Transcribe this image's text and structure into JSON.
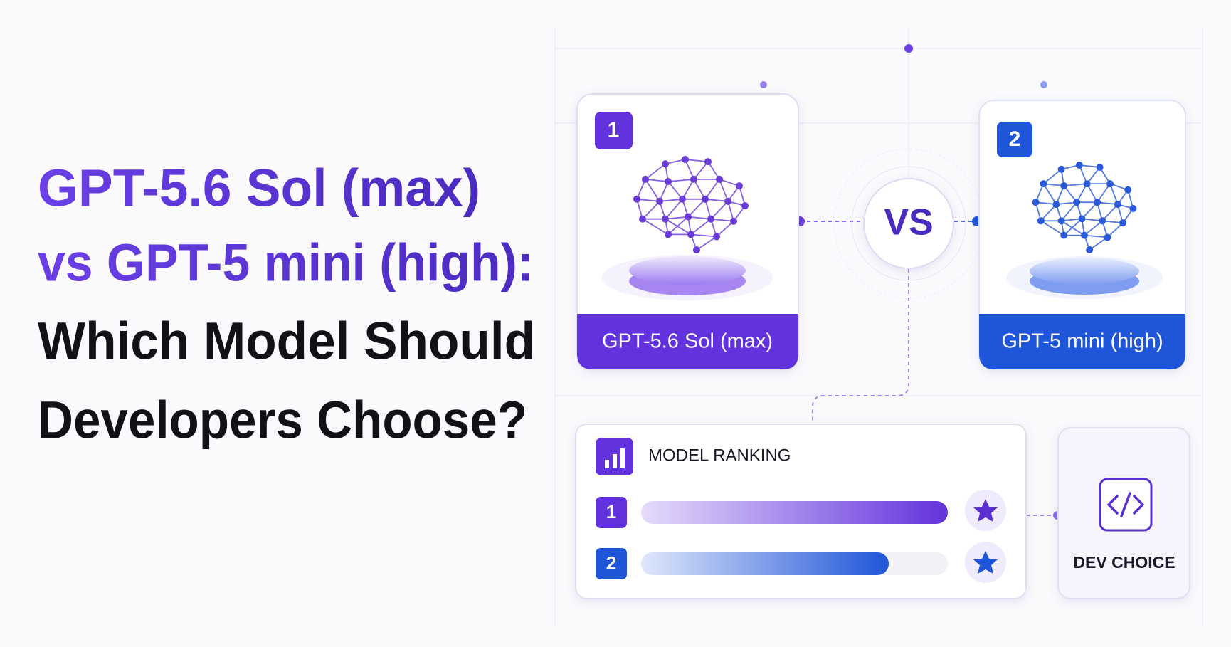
{
  "title_lines": [
    "GPT-5.6 Sol (max)",
    "vs GPT-5 mini (high):",
    "Which Model Should",
    "Developers Choose?"
  ],
  "cards": [
    {
      "badge": "1",
      "label": "GPT-5.6 Sol (max)"
    },
    {
      "badge": "2",
      "label": "GPT-5 mini (high)"
    }
  ],
  "vs": "VS",
  "ranking": {
    "title": "MODEL RANKING",
    "rows": [
      {
        "rank": "1"
      },
      {
        "rank": "2"
      }
    ]
  },
  "dev_choice": "DEV CHOICE"
}
